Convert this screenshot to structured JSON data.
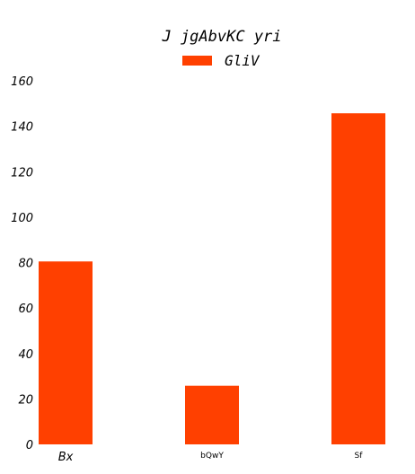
{
  "chart_data": {
    "type": "bar",
    "title": "J jgAbvKC yri",
    "categories": [
      "Bx",
      "bQwY",
      "Sf"
    ],
    "series": [
      {
        "name": "GliV",
        "values": [
          80.5,
          25.8,
          145.7
        ]
      }
    ],
    "ylim": [
      0,
      160
    ],
    "yticks": [
      "0",
      "20",
      "40",
      "60",
      "80",
      "100",
      "120",
      "140",
      "160"
    ],
    "grid": false,
    "legend": "top-center",
    "colors": {
      "bar": "#ff4000"
    }
  }
}
